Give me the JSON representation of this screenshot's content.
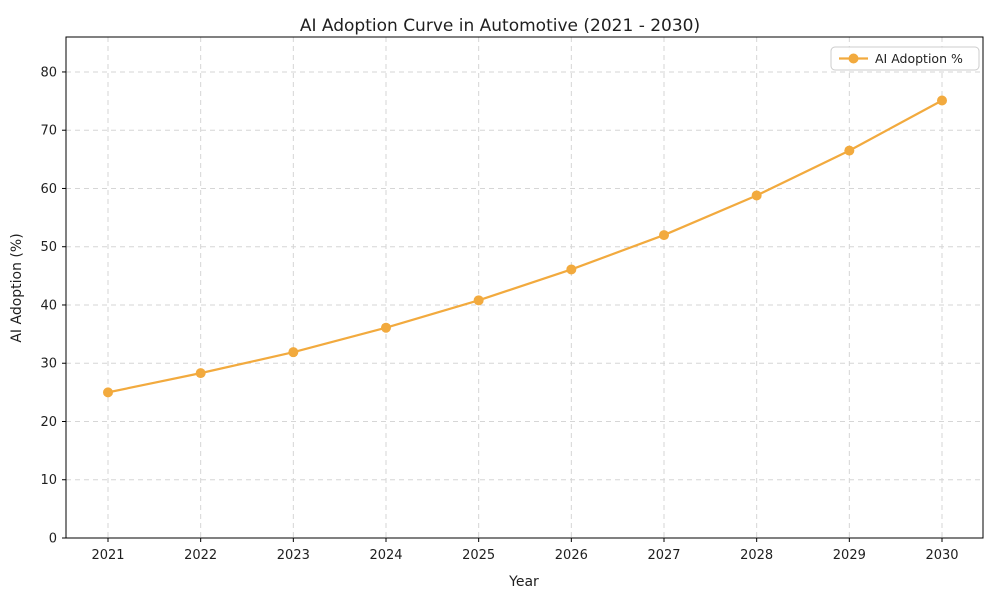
{
  "chart_data": {
    "type": "line",
    "title": "AI Adoption Curve in Automotive (2021 - 2030)",
    "xlabel": "Year",
    "ylabel": "AI Adoption (%)",
    "x": [
      "2021",
      "2022",
      "2023",
      "2024",
      "2025",
      "2026",
      "2027",
      "2028",
      "2029",
      "2030"
    ],
    "series": [
      {
        "name": "AI Adoption %",
        "values": [
          25.0,
          28.3,
          31.9,
          36.1,
          40.8,
          46.1,
          52.0,
          58.8,
          66.5,
          75.1
        ],
        "color": "#F2AA3E",
        "marker": "circle"
      }
    ],
    "ylim": [
      0,
      86
    ],
    "yticks": [
      0,
      10,
      20,
      30,
      40,
      50,
      60,
      70,
      80
    ],
    "grid": true,
    "grid_style": "dashed",
    "legend_position": "upper-right"
  },
  "colors": {
    "line": "#F2AA3E",
    "grid": "#d6d6d6",
    "spine": "#000000",
    "text": "#1f1f1f",
    "legend_border": "#cccccc",
    "legend_background": "#ffffff",
    "figure_background": "#ffffff"
  }
}
